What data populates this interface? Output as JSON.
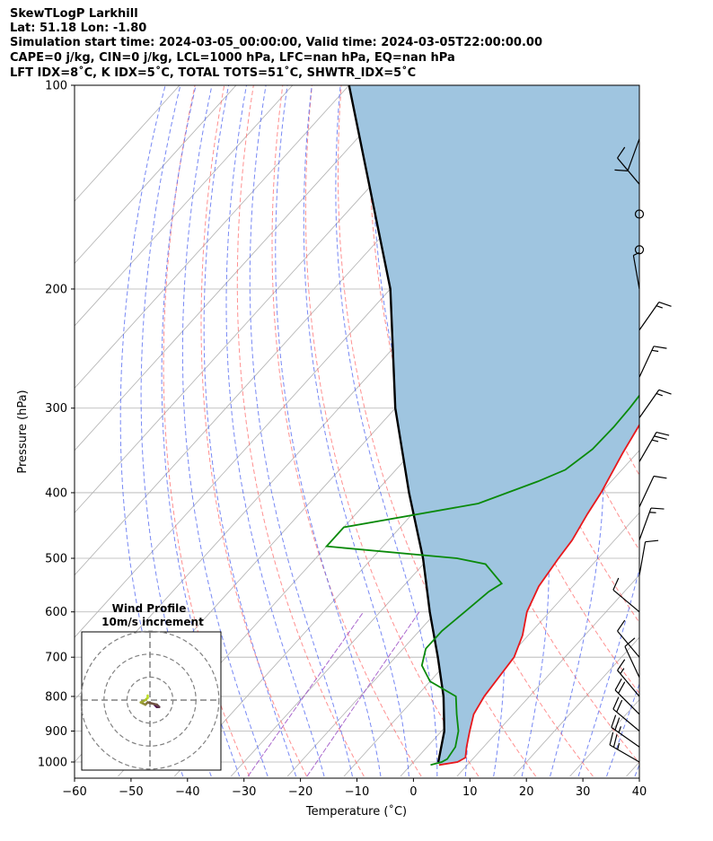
{
  "header": {
    "line1": "SkewTLogP Larkhill",
    "line2": "Lat: 51.18   Lon: -1.80",
    "line3": "Simulation start time: 2024-03-05_00:00:00, Valid time: 2024-03-05T22:00:00.00",
    "line4": "CAPE=0 j/kg, CIN=0 j/kg, LCL=1000 hPa, LFC=nan hPa, EQ=nan hPa",
    "line5": "LFT IDX=8˚C, K IDX=5˚C, TOTAL TOTS=51˚C, SHWTR_IDX=5˚C"
  },
  "chart_data": {
    "type": "skewt-logp",
    "xlabel": "Temperature (˚C)",
    "ylabel": "Pressure (hPa)",
    "xlim": [
      -60,
      40
    ],
    "ylim": [
      1050,
      100
    ],
    "y_scale": "log",
    "xticks": [
      "−60",
      "−50",
      "−40",
      "−30",
      "−20",
      "−10",
      "0",
      "10",
      "20",
      "30",
      "40"
    ],
    "yticks": [
      {
        "p": 1000,
        "label": "1000"
      },
      {
        "p": 900,
        "label": "900"
      },
      {
        "p": 800,
        "label": "800"
      },
      {
        "p": 700,
        "label": "700"
      },
      {
        "p": 600,
        "label": "600"
      },
      {
        "p": 500,
        "label": "500"
      },
      {
        "p": 400,
        "label": "400"
      },
      {
        "p": 300,
        "label": "300"
      },
      {
        "p": 200,
        "label": "200"
      },
      {
        "p": 100,
        "label": "100"
      }
    ],
    "temperature": [
      [
        1010,
        5.0
      ],
      [
        1000,
        7.8
      ],
      [
        985,
        8.5
      ],
      [
        950,
        7.0
      ],
      [
        900,
        5.0
      ],
      [
        850,
        3.0
      ],
      [
        800,
        2.0
      ],
      [
        700,
        1.0
      ],
      [
        650,
        -1.0
      ],
      [
        600,
        -4.0
      ],
      [
        550,
        -6.0
      ],
      [
        500,
        -7.0
      ],
      [
        470,
        -7.5
      ],
      [
        430,
        -9.0
      ],
      [
        400,
        -10.0
      ],
      [
        350,
        -12.5
      ],
      [
        300,
        -15.0
      ],
      [
        270,
        -16.5
      ],
      [
        250,
        -15.0
      ],
      [
        240,
        -14.0
      ],
      [
        220,
        -12.0
      ],
      [
        205,
        -11.0
      ],
      [
        190,
        -9.0
      ],
      [
        175,
        -6.5
      ],
      [
        160,
        -5.0
      ],
      [
        150,
        -3.5
      ],
      [
        140,
        -1.5
      ],
      [
        130,
        0.0
      ],
      [
        120,
        1.0
      ],
      [
        110,
        4.0
      ],
      [
        100,
        5.0
      ]
    ],
    "dewpoint": [
      [
        1010,
        3.5
      ],
      [
        1000,
        5.0
      ],
      [
        990,
        5.5
      ],
      [
        950,
        5.0
      ],
      [
        900,
        3.0
      ],
      [
        850,
        0.0
      ],
      [
        800,
        -3.0
      ],
      [
        760,
        -10.0
      ],
      [
        720,
        -14.0
      ],
      [
        680,
        -16.0
      ],
      [
        640,
        -16.0
      ],
      [
        600,
        -15.0
      ],
      [
        560,
        -14.0
      ],
      [
        545,
        -13.0
      ],
      [
        510,
        -19.0
      ],
      [
        500,
        -25.0
      ],
      [
        480,
        -50.0
      ],
      [
        450,
        -50.0
      ],
      [
        415,
        -30.0
      ],
      [
        385,
        -23.0
      ],
      [
        370,
        -20.0
      ],
      [
        345,
        -18.5
      ],
      [
        320,
        -18.3
      ],
      [
        300,
        -18.5
      ],
      [
        260,
        -19.5
      ],
      [
        230,
        -20.0
      ],
      [
        215,
        -20.0
      ],
      [
        200,
        -19.5
      ],
      [
        185,
        -19.0
      ],
      [
        170,
        -18.0
      ],
      [
        150,
        -15.0
      ],
      [
        130,
        -10.0
      ],
      [
        115,
        -6.0
      ],
      [
        100,
        -3.0
      ]
    ],
    "parcel": [
      [
        1000,
        4.4
      ],
      [
        900,
        0.5
      ],
      [
        800,
        -5.2
      ],
      [
        700,
        -12.5
      ],
      [
        600,
        -21.2
      ],
      [
        500,
        -31.0
      ],
      [
        400,
        -44.0
      ],
      [
        300,
        -60.0
      ],
      [
        200,
        -80.0
      ],
      [
        100,
        -120.0
      ]
    ],
    "shading": "parcel-to-temperature region (CAPE/CIN area)",
    "grid": true,
    "background_lines": [
      "dry adiabats",
      "moist adiabats",
      "mixing ratio lines",
      "isotherms"
    ],
    "colors": {
      "temperature": "#e8181c",
      "dewpoint": "#0a8a0a",
      "parcel": "#000000",
      "fill": "#9fc5e0",
      "dry_adiabat": "#ff6b6b",
      "moist_adiabat": "#4a60f0",
      "mixing_ratio": "#9b4dc4",
      "isotherm": "#b0b0b0"
    },
    "wind_barbs": [
      {
        "p": 1000,
        "speed_kt": 25,
        "dir": 300
      },
      {
        "p": 950,
        "speed_kt": 25,
        "dir": 305
      },
      {
        "p": 900,
        "speed_kt": 20,
        "dir": 310
      },
      {
        "p": 850,
        "speed_kt": 20,
        "dir": 315
      },
      {
        "p": 800,
        "speed_kt": 15,
        "dir": 320
      },
      {
        "p": 750,
        "speed_kt": 10,
        "dir": 335
      },
      {
        "p": 700,
        "speed_kt": 10,
        "dir": 320
      },
      {
        "p": 600,
        "speed_kt": 10,
        "dir": 310
      },
      {
        "p": 530,
        "speed_kt": 10,
        "dir": 10
      },
      {
        "p": 470,
        "speed_kt": 15,
        "dir": 20
      },
      {
        "p": 420,
        "speed_kt": 10,
        "dir": 25
      },
      {
        "p": 360,
        "speed_kt": 25,
        "dir": 30
      },
      {
        "p": 310,
        "speed_kt": 15,
        "dir": 35
      },
      {
        "p": 270,
        "speed_kt": 15,
        "dir": 25
      },
      {
        "p": 230,
        "speed_kt": 15,
        "dir": 35
      },
      {
        "p": 200,
        "speed_kt": 5,
        "dir": 350
      },
      {
        "p": 175,
        "speed_kt": 0,
        "dir": 0
      },
      {
        "p": 155,
        "speed_kt": 0,
        "dir": 0
      },
      {
        "p": 140,
        "speed_kt": 10,
        "dir": 320
      },
      {
        "p": 120,
        "speed_kt": 10,
        "dir": 200
      }
    ],
    "hodograph": {
      "title": "Wind Profile",
      "subtitle": "10m/s increment",
      "rings": [
        10,
        20,
        30
      ],
      "points": [
        [
          2,
          -2
        ],
        [
          3,
          -3
        ],
        [
          4,
          -3
        ],
        [
          3,
          -2
        ],
        [
          -1,
          -1
        ],
        [
          -2,
          -2
        ],
        [
          -4,
          -1
        ],
        [
          -2,
          0
        ],
        [
          -1,
          1
        ],
        [
          -1,
          2
        ]
      ]
    }
  }
}
